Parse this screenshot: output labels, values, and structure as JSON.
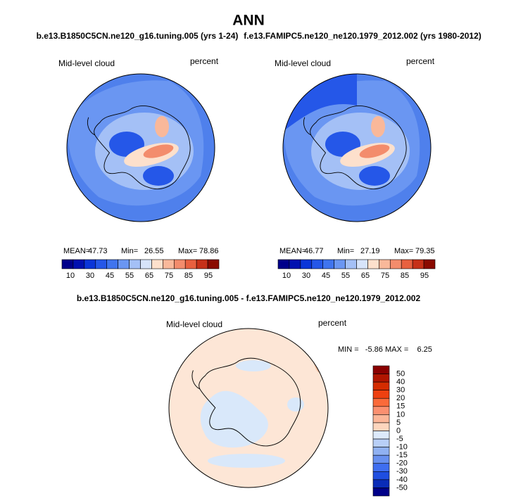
{
  "title": "ANN",
  "panels": [
    {
      "case": "b.e13.B1850C5CN.ne120_g16.tuning.005 (yrs 1-24)",
      "label": "Mid-level cloud",
      "units": "percent",
      "mean_label": "MEAN=",
      "mean": "47.73",
      "min_label": "Min=",
      "min": "26.55",
      "max_label": "Max=",
      "max": "78.86"
    },
    {
      "case": "f.e13.FAMIPC5.ne120_ne120.1979_2012.002 (yrs 1980-2012)",
      "label": "Mid-level cloud",
      "units": "percent",
      "mean_label": "MEAN=",
      "mean": "46.77",
      "min_label": "Min=",
      "min": "27.19",
      "max_label": "Max=",
      "max": "79.35"
    }
  ],
  "colorbar": [
    "10",
    "30",
    "45",
    "55",
    "65",
    "75",
    "85",
    "95"
  ],
  "difference": {
    "title": "b.e13.B1850C5CN.ne120_g16.tuning.005 - f.e13.FAMIPC5.ne120_ne120.1979_2012.002",
    "label": "Mid-level cloud",
    "units": "percent",
    "stats": "MIN =   -5.86 MAX =    6.25",
    "colorbar": [
      "50",
      "40",
      "30",
      "20",
      "15",
      "10",
      "5",
      "0",
      "-5",
      "-10",
      "-15",
      "-20",
      "-30",
      "-40",
      "-50"
    ]
  }
}
